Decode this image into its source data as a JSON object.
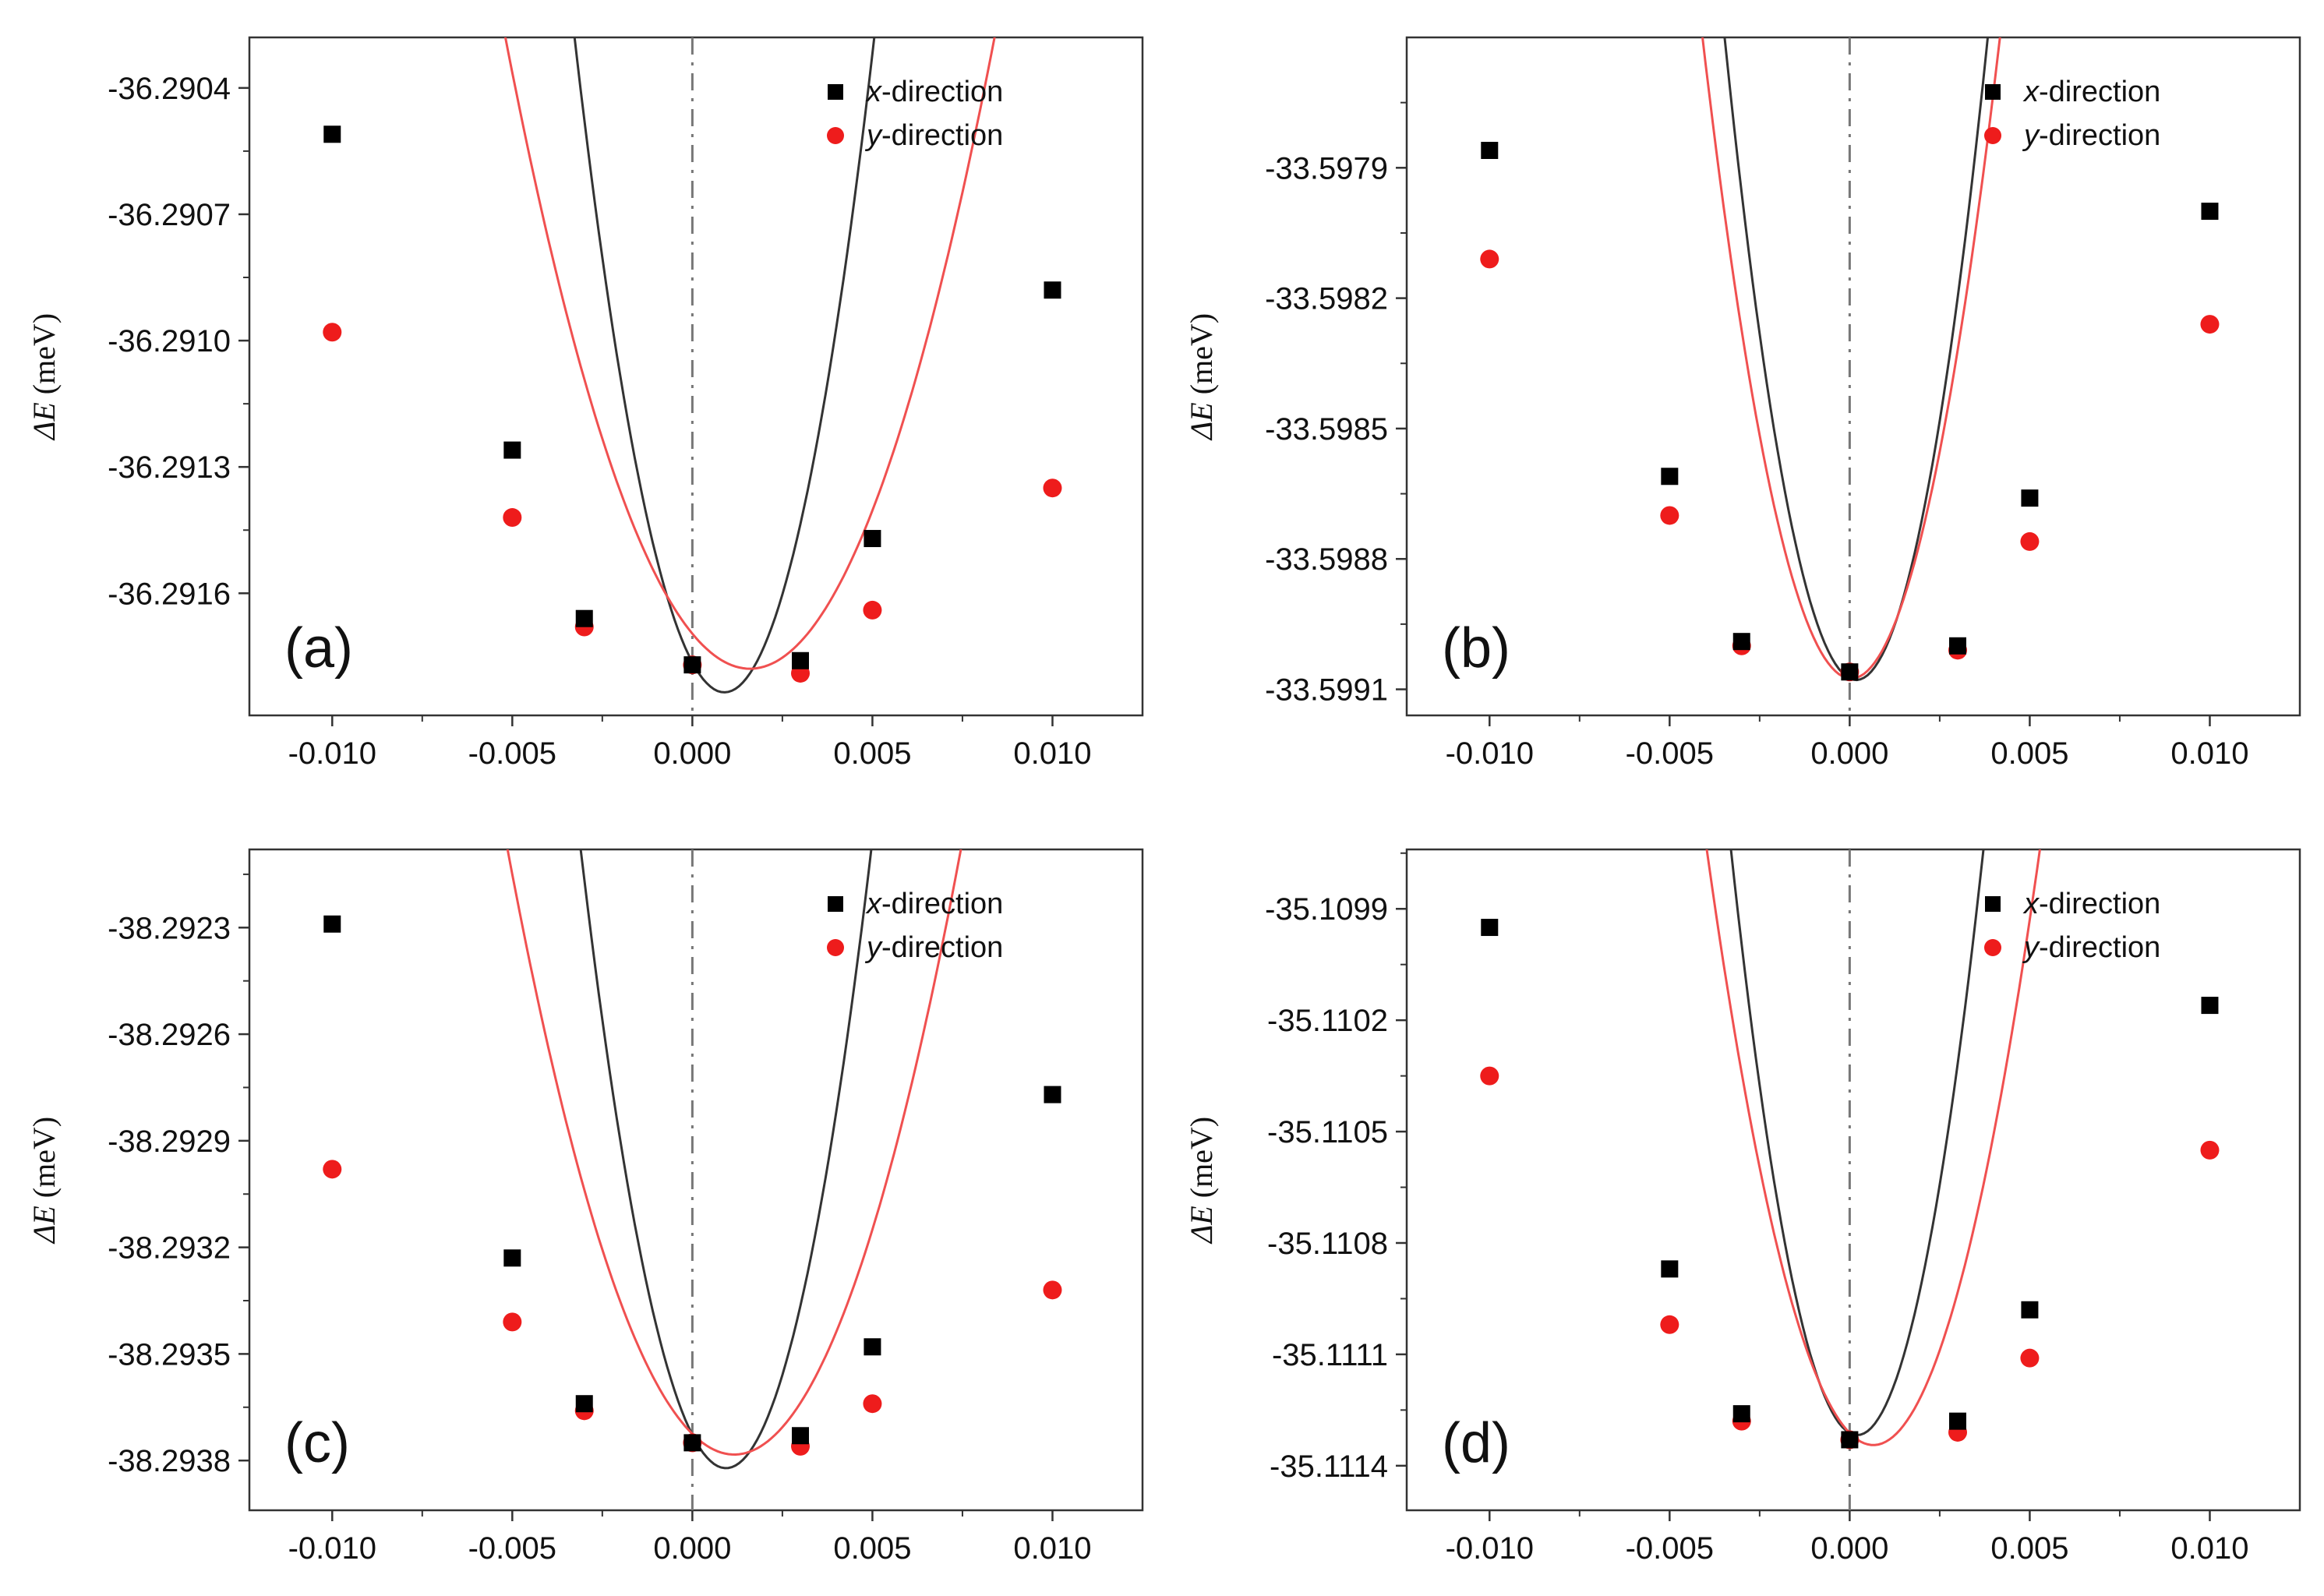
{
  "figure": {
    "y_axis_label": "ΔE (meV)",
    "y_axis_label_symbol": "ΔE",
    "y_axis_label_unit": "(meV)",
    "colors": {
      "x": "#000000",
      "y": "#ee1c1c",
      "axes": "#333333",
      "centerline": "#777777"
    }
  },
  "chart_data": [
    {
      "type": "scatter",
      "panel_label": "(a)",
      "xlabel": "",
      "ylabel": "ΔE (meV)",
      "xlim": [
        -0.0123,
        0.0125
      ],
      "ylim": [
        -36.29189,
        -36.29028
      ],
      "x_ticks": [
        "-0.010",
        "-0.005",
        "0.000",
        "0.005",
        "0.010"
      ],
      "y_ticks": [
        "-36.2904",
        "-36.2907",
        "-36.2910",
        "-36.2913",
        "-36.2916"
      ],
      "legend": [
        "x-direction",
        "y-direction"
      ],
      "centerline_x": 0,
      "series": [
        {
          "name": "x-direction",
          "marker": "square",
          "color": "#000000",
          "x": [
            -0.01,
            -0.005,
            -0.003,
            0.0,
            0.003,
            0.005,
            0.01
          ],
          "y": [
            -36.29051,
            -36.29126,
            -36.29166,
            -36.29177,
            -36.29176,
            -36.29147,
            -36.29088
          ],
          "fit": {
            "a": 89.8,
            "b": -0.16,
            "c": -36.291764
          }
        },
        {
          "name": "y-direction",
          "marker": "circle",
          "color": "#ee1c1c",
          "x": [
            -0.01,
            -0.005,
            -0.003,
            0.0,
            0.003,
            0.005,
            0.01
          ],
          "y": [
            -36.29098,
            -36.29142,
            -36.29168,
            -36.29177,
            -36.29179,
            -36.29164,
            -36.29135
          ],
          "fit": {
            "a": 32.5,
            "b": -0.104,
            "c": -36.291696
          }
        }
      ]
    },
    {
      "type": "scatter",
      "panel_label": "(b)",
      "xlabel": "",
      "ylabel": "ΔE (meV)",
      "xlim": [
        -0.0123,
        0.0125
      ],
      "ylim": [
        -33.59916,
        -33.5976
      ],
      "x_ticks": [
        "-0.010",
        "-0.005",
        "0.000",
        "0.005",
        "0.010"
      ],
      "y_ticks": [
        "-33.5979",
        "-33.5982",
        "-33.5985",
        "-33.5988",
        "-33.5991"
      ],
      "legend": [
        "x-direction",
        "y-direction"
      ],
      "centerline_x": 0,
      "series": [
        {
          "name": "x-direction",
          "marker": "square",
          "color": "#000000",
          "x": [
            -0.01,
            -0.005,
            -0.003,
            0.0,
            0.003,
            0.005,
            0.01
          ],
          "y": [
            -33.59786,
            -33.59861,
            -33.59899,
            -33.59906,
            -33.599,
            -33.59866,
            -33.598
          ],
          "fit": {
            "a": 110.8,
            "b": -0.04,
            "c": -33.599075
          }
        },
        {
          "name": "y-direction",
          "marker": "circle",
          "color": "#ee1c1c",
          "x": [
            -0.01,
            -0.005,
            -0.003,
            0.0,
            0.003,
            0.005,
            0.01
          ],
          "y": [
            -33.59811,
            -33.5987,
            -33.599,
            -33.59906,
            -33.59901,
            -33.59876,
            -33.59826
          ],
          "fit": {
            "a": 86.5,
            "b": -0.0075,
            "c": -33.599075
          }
        }
      ]
    },
    {
      "type": "scatter",
      "panel_label": "(c)",
      "xlabel": "",
      "ylabel": "ΔE (meV)",
      "xlim": [
        -0.0123,
        0.0125
      ],
      "ylim": [
        -38.29394,
        -38.29208
      ],
      "x_ticks": [
        "-0.010",
        "-0.005",
        "0.000",
        "0.005",
        "0.010"
      ],
      "y_ticks": [
        "-38.2923",
        "-38.2926",
        "-38.2929",
        "-38.2932",
        "-38.2935",
        "-38.2938"
      ],
      "legend": [
        "x-direction",
        "y-direction"
      ],
      "centerline_x": 0,
      "series": [
        {
          "name": "x-direction",
          "marker": "square",
          "color": "#000000",
          "x": [
            -0.01,
            -0.005,
            -0.003,
            0.0,
            0.003,
            0.005,
            0.01
          ],
          "y": [
            -38.29229,
            -38.29323,
            -38.29364,
            -38.29375,
            -38.29373,
            -38.29348,
            -38.29277
          ],
          "fit": {
            "a": 107.0,
            "b": -0.2,
            "c": -38.293728
          }
        },
        {
          "name": "y-direction",
          "marker": "circle",
          "color": "#ee1c1c",
          "x": [
            -0.01,
            -0.005,
            -0.003,
            0.0,
            0.003,
            0.005,
            0.01
          ],
          "y": [
            -38.29298,
            -38.29341,
            -38.29366,
            -38.29375,
            -38.29376,
            -38.29364,
            -38.29332
          ],
          "fit": {
            "a": 43.0,
            "b": -0.1,
            "c": -38.293725
          }
        }
      ]
    },
    {
      "type": "scatter",
      "panel_label": "(d)",
      "xlabel": "",
      "ylabel": "ΔE (meV)",
      "xlim": [
        -0.0123,
        0.0125
      ],
      "ylim": [
        -35.11152,
        -35.10974
      ],
      "x_ticks": [
        "-0.010",
        "-0.005",
        "0.000",
        "0.005",
        "0.010"
      ],
      "y_ticks": [
        "-35.1099",
        "-35.1102",
        "-35.1105",
        "-35.1108",
        "-35.1111",
        "-35.1114"
      ],
      "legend": [
        "x-direction",
        "y-direction"
      ],
      "centerline_x": 0,
      "series": [
        {
          "name": "x-direction",
          "marker": "square",
          "color": "#000000",
          "x": [
            -0.01,
            -0.005,
            -0.003,
            0.0,
            0.003,
            0.005,
            0.01
          ],
          "y": [
            -35.10995,
            -35.11087,
            -35.11126,
            -35.11133,
            -35.11128,
            -35.11098,
            -35.11016
          ],
          "fit": {
            "a": 128.4,
            "b": -0.0535,
            "c": -35.111312
          }
        },
        {
          "name": "y-direction",
          "marker": "circle",
          "color": "#ee1c1c",
          "x": [
            -0.01,
            -0.005,
            -0.003,
            0.0,
            0.003,
            0.005,
            0.01
          ],
          "y": [
            -35.11035,
            -35.11102,
            -35.11128,
            -35.11133,
            -35.11131,
            -35.11111,
            -35.11055
          ],
          "fit": {
            "a": 75.0,
            "b": -0.0985,
            "c": -35.111312
          }
        }
      ]
    }
  ]
}
